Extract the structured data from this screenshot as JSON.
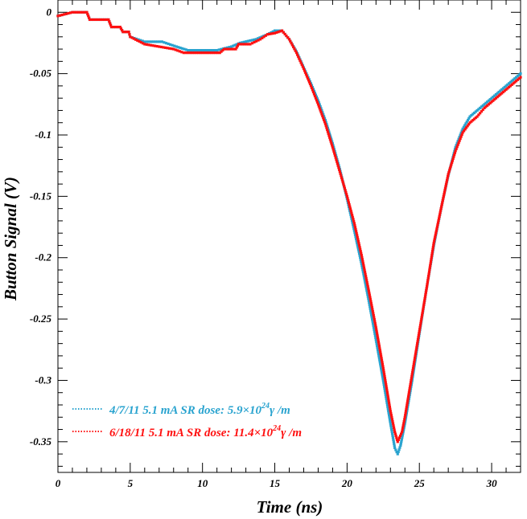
{
  "chart_data": {
    "type": "scatter",
    "title": "",
    "xlabel": "Time (ns)",
    "ylabel": "Button Signal (V)",
    "xlim": [
      0,
      32
    ],
    "ylim": [
      -0.375,
      0.01
    ],
    "x_ticks": [
      0,
      5,
      10,
      15,
      20,
      25,
      30
    ],
    "x_tick_labels": [
      "0",
      "5",
      "10",
      "15",
      "20",
      "25",
      "30"
    ],
    "y_ticks": [
      0,
      -0.05,
      -0.1,
      -0.15,
      -0.2,
      -0.25,
      -0.3,
      -0.35
    ],
    "y_tick_labels": [
      "0",
      "-0.05",
      "-0.1",
      "-0.15",
      "-0.2",
      "-0.25",
      "-0.3",
      "-0.35"
    ],
    "legend_position": "bottom-left",
    "series": [
      {
        "name": "4/7/11 5.1 mA",
        "legend": {
          "main": "4/7/11 5.1 mA  SR dose: 5.9×10",
          "sup": "24",
          "unit": "γ /m"
        },
        "color": "#29a3cf",
        "points": [
          [
            0.0,
            -0.003
          ],
          [
            1.0,
            0.0
          ],
          [
            2.0,
            0.0
          ],
          [
            2.2,
            -0.006
          ],
          [
            3.5,
            -0.006
          ],
          [
            3.7,
            -0.012
          ],
          [
            4.3,
            -0.012
          ],
          [
            4.5,
            -0.016
          ],
          [
            4.9,
            -0.016
          ],
          [
            5.0,
            -0.02
          ],
          [
            6.0,
            -0.024
          ],
          [
            7.2,
            -0.024
          ],
          [
            8.2,
            -0.028
          ],
          [
            9.0,
            -0.031
          ],
          [
            11.0,
            -0.031
          ],
          [
            12.0,
            -0.028
          ],
          [
            12.6,
            -0.025
          ],
          [
            13.7,
            -0.022
          ],
          [
            14.5,
            -0.018
          ],
          [
            15.0,
            -0.015
          ],
          [
            15.5,
            -0.015
          ],
          [
            16.0,
            -0.022
          ],
          [
            16.5,
            -0.032
          ],
          [
            17.0,
            -0.045
          ],
          [
            17.5,
            -0.058
          ],
          [
            18.0,
            -0.072
          ],
          [
            18.5,
            -0.088
          ],
          [
            19.0,
            -0.107
          ],
          [
            19.5,
            -0.128
          ],
          [
            20.0,
            -0.152
          ],
          [
            20.5,
            -0.178
          ],
          [
            21.0,
            -0.205
          ],
          [
            21.5,
            -0.235
          ],
          [
            22.0,
            -0.267
          ],
          [
            22.5,
            -0.3
          ],
          [
            23.0,
            -0.335
          ],
          [
            23.3,
            -0.355
          ],
          [
            23.5,
            -0.36
          ],
          [
            23.7,
            -0.353
          ],
          [
            24.0,
            -0.335
          ],
          [
            24.5,
            -0.3
          ],
          [
            25.0,
            -0.262
          ],
          [
            25.5,
            -0.225
          ],
          [
            26.0,
            -0.19
          ],
          [
            26.5,
            -0.16
          ],
          [
            27.0,
            -0.133
          ],
          [
            27.5,
            -0.11
          ],
          [
            28.0,
            -0.095
          ],
          [
            28.5,
            -0.085
          ],
          [
            29.0,
            -0.08
          ],
          [
            29.5,
            -0.075
          ],
          [
            30.0,
            -0.07
          ],
          [
            30.5,
            -0.065
          ],
          [
            31.0,
            -0.06
          ],
          [
            31.5,
            -0.055
          ],
          [
            32.0,
            -0.05
          ]
        ]
      },
      {
        "name": "6/18/11 5.1 mA",
        "legend": {
          "main": "6/18/11 5.1 mA  SR dose: 11.4×10",
          "sup": "24",
          "unit": "γ /m"
        },
        "color": "#ff1010",
        "points": [
          [
            0.0,
            -0.003
          ],
          [
            1.0,
            0.0
          ],
          [
            2.0,
            0.0
          ],
          [
            2.2,
            -0.006
          ],
          [
            3.5,
            -0.006
          ],
          [
            3.7,
            -0.012
          ],
          [
            4.3,
            -0.012
          ],
          [
            4.5,
            -0.016
          ],
          [
            4.9,
            -0.016
          ],
          [
            5.0,
            -0.02
          ],
          [
            6.0,
            -0.026
          ],
          [
            7.0,
            -0.028
          ],
          [
            8.0,
            -0.03
          ],
          [
            8.7,
            -0.033
          ],
          [
            11.2,
            -0.033
          ],
          [
            11.5,
            -0.03
          ],
          [
            12.3,
            -0.03
          ],
          [
            12.5,
            -0.026
          ],
          [
            13.3,
            -0.026
          ],
          [
            14.0,
            -0.022
          ],
          [
            14.5,
            -0.018
          ],
          [
            15.0,
            -0.017
          ],
          [
            15.5,
            -0.015
          ],
          [
            16.0,
            -0.022
          ],
          [
            16.5,
            -0.033
          ],
          [
            17.0,
            -0.046
          ],
          [
            17.5,
            -0.06
          ],
          [
            18.0,
            -0.075
          ],
          [
            18.5,
            -0.091
          ],
          [
            19.0,
            -0.11
          ],
          [
            19.5,
            -0.13
          ],
          [
            20.0,
            -0.15
          ],
          [
            20.5,
            -0.172
          ],
          [
            21.0,
            -0.198
          ],
          [
            21.5,
            -0.227
          ],
          [
            22.0,
            -0.257
          ],
          [
            22.5,
            -0.29
          ],
          [
            23.0,
            -0.325
          ],
          [
            23.3,
            -0.342
          ],
          [
            23.5,
            -0.35
          ],
          [
            23.8,
            -0.342
          ],
          [
            24.0,
            -0.33
          ],
          [
            24.5,
            -0.295
          ],
          [
            25.0,
            -0.26
          ],
          [
            25.5,
            -0.225
          ],
          [
            26.0,
            -0.188
          ],
          [
            26.5,
            -0.16
          ],
          [
            27.0,
            -0.132
          ],
          [
            27.5,
            -0.113
          ],
          [
            28.0,
            -0.098
          ],
          [
            28.5,
            -0.09
          ],
          [
            29.0,
            -0.085
          ],
          [
            29.5,
            -0.078
          ],
          [
            30.0,
            -0.073
          ],
          [
            30.5,
            -0.068
          ],
          [
            31.0,
            -0.063
          ],
          [
            31.5,
            -0.058
          ],
          [
            32.0,
            -0.053
          ]
        ]
      }
    ]
  }
}
